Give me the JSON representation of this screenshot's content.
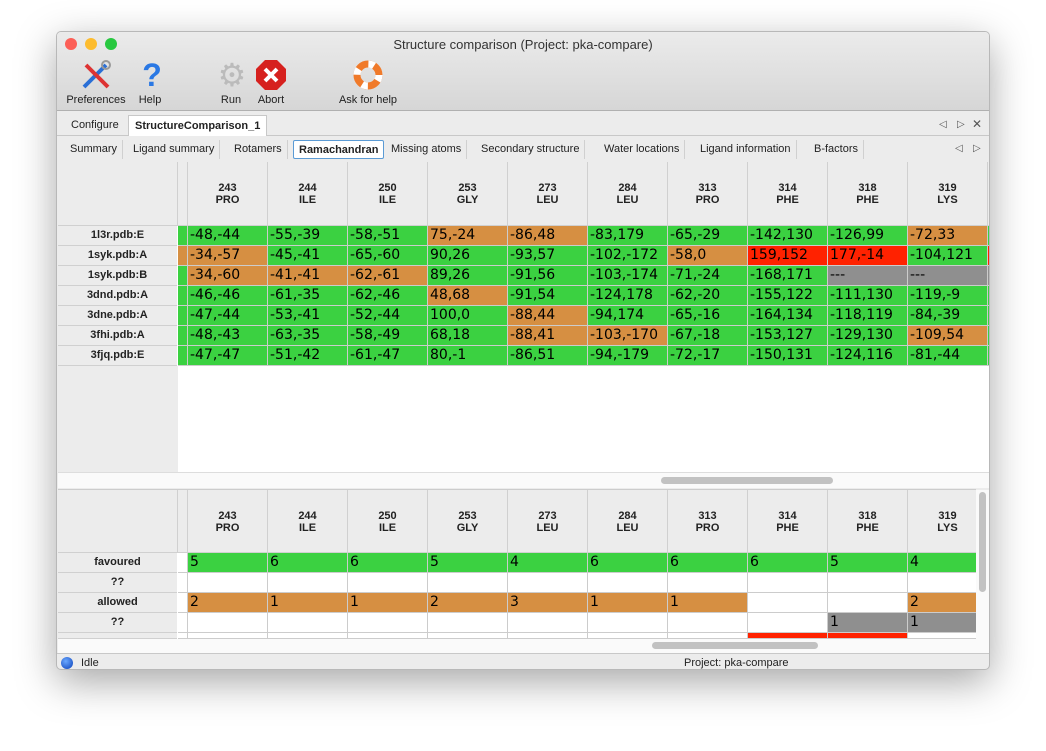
{
  "window": {
    "title": "Structure comparison (Project: pka-compare)"
  },
  "toolbar": [
    {
      "label": "Preferences",
      "icon": "tools-icon"
    },
    {
      "label": "Help",
      "icon": "help-icon"
    },
    {
      "label": "Run",
      "icon": "gear-icon"
    },
    {
      "label": "Abort",
      "icon": "abort-icon"
    },
    {
      "label": "Ask for help",
      "icon": "lifebuoy-icon"
    }
  ],
  "top_tabs": [
    "Configure",
    "StructureComparison_1"
  ],
  "sub_tabs": [
    "Summary",
    "Ligand summary",
    "Rotamers",
    "Ramachandran",
    "Missing atoms",
    "Secondary structure",
    "Water locations",
    "Ligand information",
    "B-factors"
  ],
  "active_sub_tab": "Ramachandran",
  "colors": {
    "favoured": "#3bd141",
    "allowed": "#d68f42",
    "outlier": "#ff2200",
    "missing": "#8f8f8f"
  },
  "columns": [
    {
      "num": "243",
      "res": "PRO"
    },
    {
      "num": "244",
      "res": "ILE"
    },
    {
      "num": "250",
      "res": "ILE"
    },
    {
      "num": "253",
      "res": "GLY"
    },
    {
      "num": "273",
      "res": "LEU"
    },
    {
      "num": "284",
      "res": "LEU"
    },
    {
      "num": "313",
      "res": "PRO"
    },
    {
      "num": "314",
      "res": "PHE"
    },
    {
      "num": "318",
      "res": "PHE"
    },
    {
      "num": "319",
      "res": "LYS"
    }
  ],
  "rama_rows": [
    {
      "name": "1l3r.pdb:E",
      "gutter": "g",
      "cells": [
        [
          "-48,-44",
          "g"
        ],
        [
          "-55,-39",
          "g"
        ],
        [
          "-58,-51",
          "g"
        ],
        [
          "75,-24",
          "o"
        ],
        [
          "-86,48",
          "o"
        ],
        [
          "-83,179",
          "g"
        ],
        [
          "-65,-29",
          "g"
        ],
        [
          "-142,130",
          "g"
        ],
        [
          "-126,99",
          "g"
        ],
        [
          "-72,33",
          "o"
        ]
      ],
      "next": "g"
    },
    {
      "name": "1syk.pdb:A",
      "gutter": "o",
      "cells": [
        [
          "-34,-57",
          "o"
        ],
        [
          "-45,-41",
          "g"
        ],
        [
          "-65,-60",
          "g"
        ],
        [
          "90,26",
          "g"
        ],
        [
          "-93,57",
          "g"
        ],
        [
          "-102,-172",
          "g"
        ],
        [
          "-58,0",
          "o"
        ],
        [
          "159,152",
          "r"
        ],
        [
          "177,-14",
          "r"
        ],
        [
          "-104,121",
          "g"
        ]
      ],
      "next": "r"
    },
    {
      "name": "1syk.pdb:B",
      "gutter": "g",
      "cells": [
        [
          "-34,-60",
          "o"
        ],
        [
          "-41,-41",
          "o"
        ],
        [
          "-62,-61",
          "o"
        ],
        [
          "89,26",
          "g"
        ],
        [
          "-91,56",
          "g"
        ],
        [
          "-103,-174",
          "g"
        ],
        [
          "-71,-24",
          "g"
        ],
        [
          "-168,171",
          "g"
        ],
        [
          "---",
          "x"
        ],
        [
          "---",
          "x"
        ]
      ],
      "next": "x"
    },
    {
      "name": "3dnd.pdb:A",
      "gutter": "g",
      "cells": [
        [
          "-46,-46",
          "g"
        ],
        [
          "-61,-35",
          "g"
        ],
        [
          "-62,-46",
          "g"
        ],
        [
          "48,68",
          "o"
        ],
        [
          "-91,54",
          "g"
        ],
        [
          "-124,178",
          "g"
        ],
        [
          "-62,-20",
          "g"
        ],
        [
          "-155,122",
          "g"
        ],
        [
          "-111,130",
          "g"
        ],
        [
          "-119,-9",
          "g"
        ]
      ],
      "next": "g"
    },
    {
      "name": "3dne.pdb:A",
      "gutter": "g",
      "cells": [
        [
          "-47,-44",
          "g"
        ],
        [
          "-53,-41",
          "g"
        ],
        [
          "-52,-44",
          "g"
        ],
        [
          "100,0",
          "g"
        ],
        [
          "-88,44",
          "o"
        ],
        [
          "-94,174",
          "g"
        ],
        [
          "-65,-16",
          "g"
        ],
        [
          "-164,134",
          "g"
        ],
        [
          "-118,119",
          "g"
        ],
        [
          "-84,-39",
          "g"
        ]
      ],
      "next": "g"
    },
    {
      "name": "3fhi.pdb:A",
      "gutter": "g",
      "cells": [
        [
          "-48,-43",
          "g"
        ],
        [
          "-63,-35",
          "g"
        ],
        [
          "-58,-49",
          "g"
        ],
        [
          "68,18",
          "g"
        ],
        [
          "-88,41",
          "o"
        ],
        [
          "-103,-170",
          "o"
        ],
        [
          "-67,-18",
          "g"
        ],
        [
          "-153,127",
          "g"
        ],
        [
          "-129,130",
          "g"
        ],
        [
          "-109,54",
          "o"
        ]
      ],
      "next": "g"
    },
    {
      "name": "3fjq.pdb:E",
      "gutter": "g",
      "cells": [
        [
          "-47,-47",
          "g"
        ],
        [
          "-51,-42",
          "g"
        ],
        [
          "-61,-47",
          "g"
        ],
        [
          "80,-1",
          "g"
        ],
        [
          "-86,51",
          "g"
        ],
        [
          "-94,-179",
          "g"
        ],
        [
          "-72,-17",
          "g"
        ],
        [
          "-150,131",
          "g"
        ],
        [
          "-124,116",
          "g"
        ],
        [
          "-81,-44",
          "g"
        ]
      ],
      "next": "g"
    }
  ],
  "summary_rows": [
    {
      "name": "favoured",
      "cells": [
        [
          "5",
          "g"
        ],
        [
          "6",
          "g"
        ],
        [
          "6",
          "g"
        ],
        [
          "5",
          "g"
        ],
        [
          "4",
          "g"
        ],
        [
          "6",
          "g"
        ],
        [
          "6",
          "g"
        ],
        [
          "6",
          "g"
        ],
        [
          "5",
          "g"
        ],
        [
          "4",
          "g"
        ]
      ]
    },
    {
      "name": "??",
      "cells": [
        [
          "",
          "w"
        ],
        [
          "",
          "w"
        ],
        [
          "",
          "w"
        ],
        [
          "",
          "w"
        ],
        [
          "",
          "w"
        ],
        [
          "",
          "w"
        ],
        [
          "",
          "w"
        ],
        [
          "",
          "w"
        ],
        [
          "",
          "w"
        ],
        [
          "",
          "w"
        ]
      ]
    },
    {
      "name": "allowed",
      "cells": [
        [
          "2",
          "o"
        ],
        [
          "1",
          "o"
        ],
        [
          "1",
          "o"
        ],
        [
          "2",
          "o"
        ],
        [
          "3",
          "o"
        ],
        [
          "1",
          "o"
        ],
        [
          "1",
          "o"
        ],
        [
          "",
          "w"
        ],
        [
          "",
          "w"
        ],
        [
          "2",
          "o"
        ]
      ]
    },
    {
      "name": "??",
      "cells": [
        [
          "",
          "w"
        ],
        [
          "",
          "w"
        ],
        [
          "",
          "w"
        ],
        [
          "",
          "w"
        ],
        [
          "",
          "w"
        ],
        [
          "",
          "w"
        ],
        [
          "",
          "w"
        ],
        [
          "",
          "w"
        ],
        [
          "1",
          "x"
        ],
        [
          "1",
          "x"
        ]
      ]
    },
    {
      "name": "",
      "cells": [
        [
          "",
          "w"
        ],
        [
          "",
          "w"
        ],
        [
          "",
          "w"
        ],
        [
          "",
          "w"
        ],
        [
          "",
          "w"
        ],
        [
          "",
          "w"
        ],
        [
          "",
          "w"
        ],
        [
          "",
          "r"
        ],
        [
          "",
          "r"
        ],
        [
          "",
          "w"
        ]
      ]
    }
  ],
  "status": {
    "state": "Idle",
    "project": "Project: pka-compare"
  }
}
